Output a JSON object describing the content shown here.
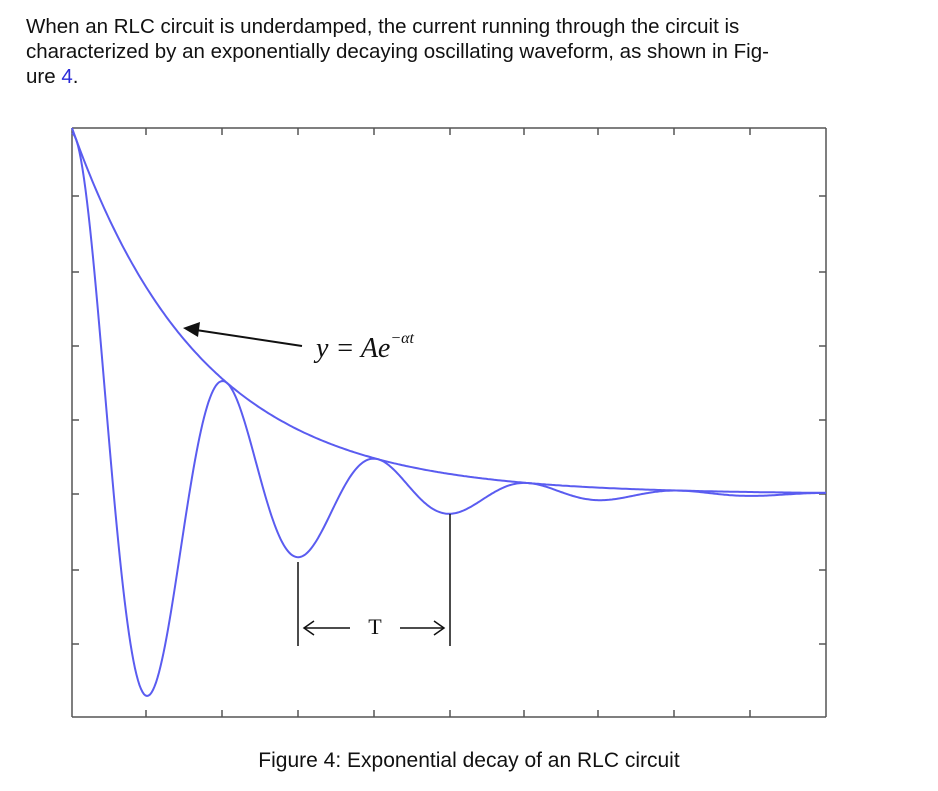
{
  "paragraph": {
    "line1": "When an RLC circuit is underdamped, the current running through the circuit is",
    "line2": "characterized by an exponentially decaying oscillating waveform, as shown in Fig-",
    "line3_prefix": "ure ",
    "figure_ref": "4",
    "line3_suffix": "."
  },
  "figure": {
    "caption": "Figure 4: Exponential decay of an RLC circuit",
    "envelope_label_y": "y",
    "envelope_label_eq": " = Ae",
    "envelope_label_exp": "−αt",
    "period_label": "T",
    "colors": {
      "curve": "#5a5cf0",
      "axis": "#555555",
      "text": "#111111"
    }
  },
  "chart_data": {
    "type": "line",
    "title": "",
    "xlabel": "",
    "ylabel": "",
    "grid": false,
    "series": [
      {
        "description": "envelope",
        "equation": "y = Ae^(-αt)"
      },
      {
        "description": "damped oscillation"
      }
    ]
  }
}
